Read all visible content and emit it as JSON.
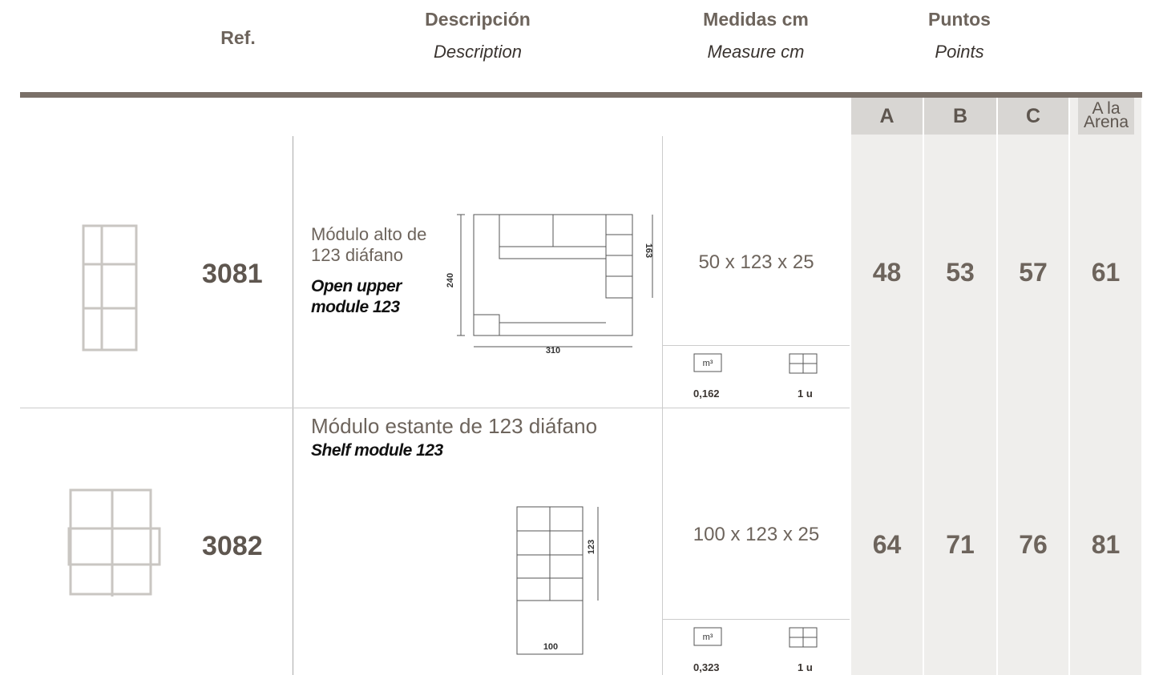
{
  "header": {
    "ref": "Ref.",
    "description": "Descripción",
    "description_en": "Description",
    "measures": "Medidas cm",
    "measures_en": "Measure cm",
    "points": "Puntos",
    "points_en": "Points"
  },
  "point_columns": [
    "A",
    "B",
    "C",
    "A la Arena"
  ],
  "volume_icon": "m³",
  "rows": [
    {
      "ref": "3081",
      "title": "Módulo alto de 123 diáfano",
      "title_en": "Open upper module 123",
      "measures": "50 x 123 x 25",
      "drawing_dims": [
        "240",
        "163",
        "310"
      ],
      "volume": "0,162",
      "units": "1 u",
      "points": [
        48,
        53,
        57,
        61
      ]
    },
    {
      "ref": "3082",
      "title": "Módulo estante de 123 diáfano",
      "title_en": "Shelf module 123",
      "measures": "100 x 123 x 25",
      "drawing_dims": [
        "123",
        "100"
      ],
      "volume": "0,323",
      "units": "1 u",
      "points": [
        64,
        71,
        76,
        81
      ]
    }
  ]
}
